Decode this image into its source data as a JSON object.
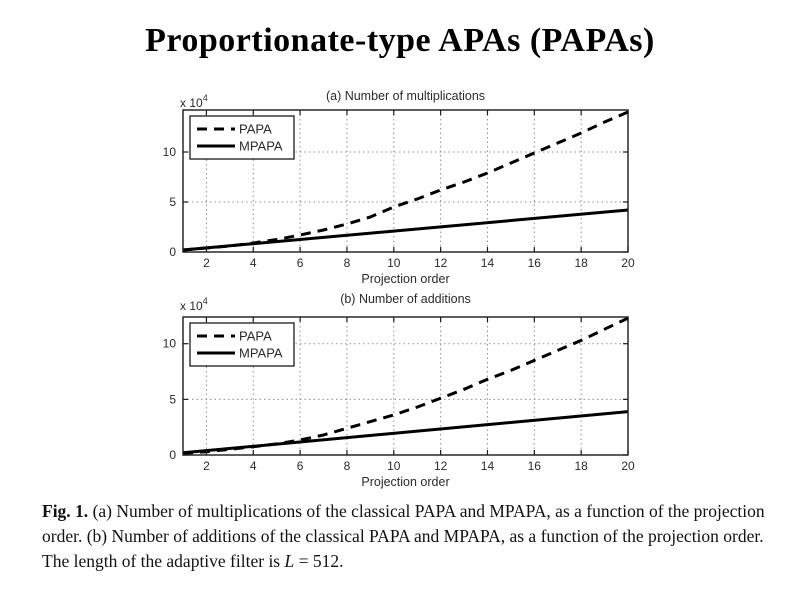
{
  "slide": {
    "title": "Proportionate-type APAs (PAPAs)"
  },
  "caption": {
    "label": "Fig. 1.",
    "text_before_L": " (a) Number of multiplications of the classical PAPA and MPAPA, as a function of the projection order. (b) Number of additions of the classical PAPA and MPAPA, as a function of the projection order. The length of the adaptive filter is ",
    "variable": "L",
    "text_after_L": " = 512."
  },
  "colors": {
    "line": "#000000",
    "grid": "#8f8f8f",
    "chart_text": "#2b2b2b",
    "background": "#ffffff"
  },
  "chart_data": [
    {
      "type": "line",
      "title": "(a) Number of multiplications",
      "xlabel": "Projection order",
      "ylabel": "",
      "y_scale_label": "x 10",
      "y_scale_exponent": "4",
      "y_unit": "1e4",
      "xlim": [
        1,
        20
      ],
      "ylim": [
        0,
        14.2
      ],
      "xticks": [
        2,
        4,
        6,
        8,
        10,
        12,
        14,
        16,
        18,
        20
      ],
      "yticks": [
        0,
        5,
        10
      ],
      "grid": true,
      "legend_position": "top-left",
      "series": [
        {
          "name": "PAPA",
          "style": "dashed",
          "x": [
            1,
            2,
            3,
            4,
            5,
            6,
            7,
            8,
            9,
            10,
            11,
            12,
            13,
            14,
            15,
            16,
            17,
            18,
            19,
            20
          ],
          "y": [
            0.2,
            0.4,
            0.6,
            0.9,
            1.25,
            1.7,
            2.2,
            2.8,
            3.5,
            4.5,
            5.3,
            6.2,
            7.0,
            7.9,
            8.9,
            9.9,
            10.9,
            11.9,
            13.0,
            14.0
          ]
        },
        {
          "name": "MPAPA",
          "style": "solid",
          "x": [
            1,
            20
          ],
          "y": [
            0.2,
            4.2
          ]
        }
      ]
    },
    {
      "type": "line",
      "title": "(b) Number of additions",
      "xlabel": "Projection order",
      "ylabel": "",
      "y_scale_label": "x 10",
      "y_scale_exponent": "4",
      "y_unit": "1e4",
      "xlim": [
        1,
        20
      ],
      "ylim": [
        0,
        12.4
      ],
      "xticks": [
        2,
        4,
        6,
        8,
        10,
        12,
        14,
        16,
        18,
        20
      ],
      "yticks": [
        0,
        5,
        10
      ],
      "grid": true,
      "legend_position": "top-left",
      "series": [
        {
          "name": "PAPA",
          "style": "dashed",
          "x": [
            1,
            2,
            3,
            4,
            5,
            6,
            7,
            8,
            9,
            10,
            11,
            12,
            13,
            14,
            15,
            16,
            17,
            18,
            19,
            20
          ],
          "y": [
            0.15,
            0.3,
            0.5,
            0.75,
            1.0,
            1.35,
            1.8,
            2.4,
            3.0,
            3.6,
            4.3,
            5.1,
            5.9,
            6.8,
            7.6,
            8.5,
            9.4,
            10.3,
            11.3,
            12.3
          ]
        },
        {
          "name": "MPAPA",
          "style": "solid",
          "x": [
            1,
            20
          ],
          "y": [
            0.2,
            3.9
          ]
        }
      ]
    }
  ]
}
